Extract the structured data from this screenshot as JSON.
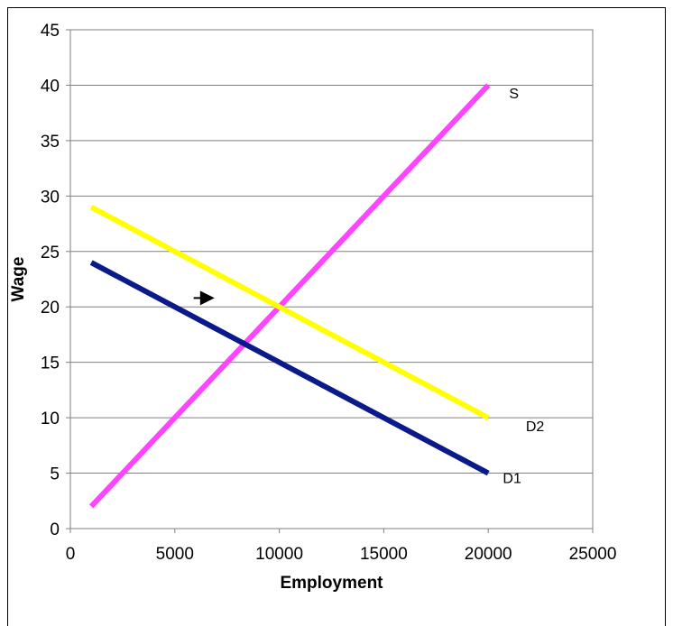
{
  "chart_data": {
    "type": "line",
    "title": "",
    "xlabel": "Employment",
    "ylabel": "Wage",
    "xlim": [
      0,
      25000
    ],
    "ylim": [
      0,
      45
    ],
    "xticks": [
      0,
      5000,
      10000,
      15000,
      20000,
      25000
    ],
    "yticks": [
      0,
      5,
      10,
      15,
      20,
      25,
      30,
      35,
      40,
      45
    ],
    "grid": "horizontal",
    "legend": "none",
    "series": [
      {
        "name": "S",
        "color": "#ff44ff",
        "x": [
          1000,
          20000
        ],
        "y": [
          2,
          40
        ]
      },
      {
        "name": "D2",
        "color": "#ffff00",
        "x": [
          1000,
          20000
        ],
        "y": [
          29,
          10
        ]
      },
      {
        "name": "D1",
        "color": "#0a1a8a",
        "x": [
          1000,
          20000
        ],
        "y": [
          24,
          5
        ]
      }
    ],
    "series_labels": [
      {
        "text": "S",
        "x": 21000,
        "y": 38.8
      },
      {
        "text": "D2",
        "x": 21800,
        "y": 8.8
      },
      {
        "text": "D1",
        "x": 20700,
        "y": 4.1
      }
    ],
    "annotations": [
      {
        "type": "arrow",
        "icon": "right-arrow-icon",
        "from": [
          5900,
          20.8
        ],
        "to": [
          6900,
          20.8
        ]
      }
    ]
  }
}
